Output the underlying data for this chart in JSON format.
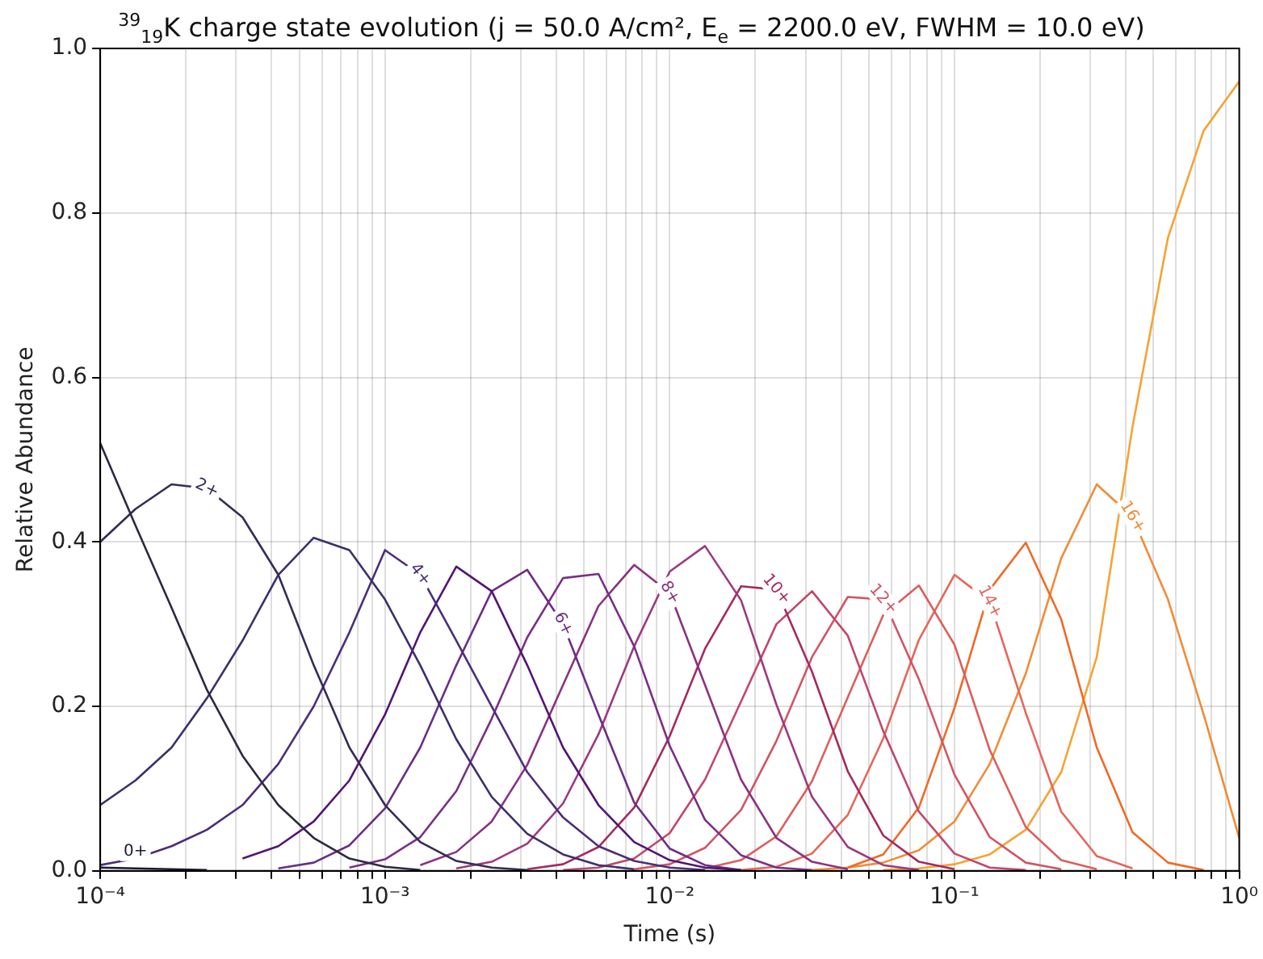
{
  "chart_data": {
    "type": "line",
    "title": "$^{39}$$_{19}$K charge state evolution (j = 50.0 A/cm², E$_{e}$ = 2200.0 eV, FWHM = 10.0 eV)",
    "xlabel": "Time (s)",
    "ylabel": "Relative Abundance",
    "log": "x",
    "grid": true,
    "legend": false,
    "marker": "none",
    "xlim": [
      0.0001,
      1
    ],
    "ylim": [
      0,
      1
    ],
    "xticks": [
      {
        "value": 0.0001,
        "label": "10⁻⁴"
      },
      {
        "value": 0.0002,
        "label": null
      },
      {
        "value": 0.0003,
        "label": null
      },
      {
        "value": 0.0004,
        "label": null
      },
      {
        "value": 0.0005,
        "label": null
      },
      {
        "value": 0.0006,
        "label": null
      },
      {
        "value": 0.0007,
        "label": null
      },
      {
        "value": 0.0008,
        "label": null
      },
      {
        "value": 0.0009,
        "label": null
      },
      {
        "value": 0.001,
        "label": "10⁻³"
      },
      {
        "value": 0.002,
        "label": null
      },
      {
        "value": 0.003,
        "label": null
      },
      {
        "value": 0.004,
        "label": null
      },
      {
        "value": 0.005,
        "label": null
      },
      {
        "value": 0.006,
        "label": null
      },
      {
        "value": 0.007,
        "label": null
      },
      {
        "value": 0.008,
        "label": null
      },
      {
        "value": 0.009,
        "label": null
      },
      {
        "value": 0.01,
        "label": "10⁻²"
      },
      {
        "value": 0.02,
        "label": null
      },
      {
        "value": 0.03,
        "label": null
      },
      {
        "value": 0.04,
        "label": null
      },
      {
        "value": 0.05,
        "label": null
      },
      {
        "value": 0.06,
        "label": null
      },
      {
        "value": 0.07,
        "label": null
      },
      {
        "value": 0.08,
        "label": null
      },
      {
        "value": 0.09,
        "label": null
      },
      {
        "value": 0.1,
        "label": "10⁻¹"
      },
      {
        "value": 0.2,
        "label": null
      },
      {
        "value": 0.3,
        "label": null
      },
      {
        "value": 0.4,
        "label": null
      },
      {
        "value": 0.5,
        "label": null
      },
      {
        "value": 0.6,
        "label": null
      },
      {
        "value": 0.7,
        "label": null
      },
      {
        "value": 0.8,
        "label": null
      },
      {
        "value": 0.9,
        "label": null
      },
      {
        "value": 1,
        "label": "10⁰"
      }
    ],
    "yticks": [
      {
        "value": 0,
        "label": "0.0"
      },
      0.2,
      0.4,
      0.6,
      0.8,
      {
        "value": 1,
        "label": "1.0"
      }
    ],
    "x": [
      0.0001,
      0.000133,
      0.000178,
      0.000237,
      0.000316,
      0.000422,
      0.000562,
      0.00075,
      0.001,
      0.00133,
      0.00178,
      0.00237,
      0.00316,
      0.00422,
      0.00562,
      0.0075,
      0.01,
      0.0133,
      0.0178,
      0.0237,
      0.0316,
      0.0422,
      0.0562,
      0.075,
      0.1,
      0.133,
      0.178,
      0.237,
      0.316,
      0.422,
      0.562,
      0.75,
      1
    ],
    "series": [
      {
        "name": "0+",
        "color": "#1c1830",
        "values": [
          0.004,
          0.003,
          0.002,
          0.001,
          null,
          null,
          null,
          null,
          null,
          null,
          null,
          null,
          null,
          null,
          null,
          null,
          null,
          null,
          null,
          null,
          null,
          null,
          null,
          null,
          null,
          null,
          null,
          null,
          null,
          null,
          null,
          null,
          null
        ]
      },
      {
        "color": "#2b2a40",
        "values": [
          0.52,
          0.42,
          0.32,
          0.22,
          0.14,
          0.08,
          0.04,
          0.015,
          0.005,
          0.001,
          null,
          null,
          null,
          null,
          null,
          null,
          null,
          null,
          null,
          null,
          null,
          null,
          null,
          null,
          null,
          null,
          null,
          null,
          null,
          null,
          null,
          null,
          null
        ]
      },
      {
        "name": "2+",
        "color": "#352c55",
        "values": [
          0.4,
          0.44,
          0.47,
          0.465,
          0.43,
          0.36,
          0.25,
          0.15,
          0.08,
          0.035,
          0.012,
          0.004,
          0.001,
          null,
          null,
          null,
          null,
          null,
          null,
          null,
          null,
          null,
          null,
          null,
          null,
          null,
          null,
          null,
          null,
          null,
          null,
          null,
          null
        ]
      },
      {
        "color": "#3e2f6b",
        "values": [
          0.08,
          0.11,
          0.15,
          0.21,
          0.28,
          0.36,
          0.405,
          0.39,
          0.33,
          0.25,
          0.16,
          0.09,
          0.045,
          0.02,
          0.007,
          0.002,
          null,
          null,
          null,
          null,
          null,
          null,
          null,
          null,
          null,
          null,
          null,
          null,
          null,
          null,
          null,
          null,
          null
        ]
      },
      {
        "name": "4+",
        "color": "#4b2e7a",
        "values": [
          0.007,
          0.015,
          0.03,
          0.05,
          0.08,
          0.13,
          0.2,
          0.29,
          0.39,
          0.36,
          0.28,
          0.2,
          0.12,
          0.065,
          0.03,
          0.012,
          0.004,
          0.001,
          null,
          null,
          null,
          null,
          null,
          null,
          null,
          null,
          null,
          null,
          null,
          null,
          null,
          null,
          null
        ]
      },
      {
        "color": "#521673",
        "values": [
          null,
          null,
          null,
          null,
          0.015,
          0.03,
          0.06,
          0.11,
          0.19,
          0.29,
          0.37,
          0.34,
          0.25,
          0.15,
          0.08,
          0.035,
          0.013,
          0.004,
          0.001,
          null,
          null,
          null,
          null,
          null,
          null,
          null,
          null,
          null,
          null,
          null,
          null,
          null,
          null
        ]
      },
      {
        "name": "6+",
        "color": "#6b2e86",
        "values": [
          null,
          null,
          null,
          null,
          null,
          0.003,
          0.01,
          0.031,
          0.076,
          0.15,
          0.25,
          0.34,
          0.366,
          0.3,
          0.19,
          0.083,
          0.027,
          0.007,
          0.001,
          null,
          null,
          null,
          null,
          null,
          null,
          null,
          null,
          null,
          null,
          null,
          null,
          null,
          null
        ]
      },
      {
        "color": "#7a2f85",
        "values": [
          null,
          null,
          null,
          null,
          null,
          null,
          null,
          0.004,
          0.014,
          0.041,
          0.097,
          0.185,
          0.284,
          0.356,
          0.361,
          0.273,
          0.152,
          0.062,
          0.019,
          0.004,
          0.001,
          null,
          null,
          null,
          null,
          null,
          null,
          null,
          null,
          null,
          null,
          null,
          null
        ]
      },
      {
        "name": "8+",
        "color": "#8a3281",
        "values": [
          null,
          null,
          null,
          null,
          null,
          null,
          null,
          null,
          null,
          0.007,
          0.023,
          0.06,
          0.129,
          0.226,
          0.322,
          0.372,
          0.338,
          0.226,
          0.111,
          0.04,
          0.011,
          0.002,
          null,
          null,
          null,
          null,
          null,
          null,
          null,
          null,
          null,
          null,
          null
        ]
      },
      {
        "color": "#9c3a7e",
        "values": [
          null,
          null,
          null,
          null,
          null,
          null,
          null,
          null,
          null,
          null,
          0.003,
          0.011,
          0.033,
          0.082,
          0.166,
          0.273,
          0.364,
          0.395,
          0.329,
          0.202,
          0.09,
          0.029,
          0.007,
          0.001,
          null,
          null,
          null,
          null,
          null,
          null,
          null,
          null,
          null
        ]
      },
      {
        "name": "10+",
        "color": "#a42b5e",
        "values": [
          null,
          null,
          null,
          null,
          null,
          null,
          null,
          null,
          null,
          null,
          null,
          null,
          0.002,
          0.008,
          0.029,
          0.077,
          0.164,
          0.27,
          0.346,
          0.342,
          0.242,
          0.121,
          0.043,
          0.011,
          0.002,
          null,
          null,
          null,
          null,
          null,
          null,
          null,
          null
        ]
      },
      {
        "color": "#c2476b",
        "values": [
          null,
          null,
          null,
          null,
          null,
          null,
          null,
          null,
          null,
          null,
          null,
          null,
          null,
          0.001,
          0.004,
          0.015,
          0.046,
          0.111,
          0.206,
          0.3,
          0.34,
          0.286,
          0.17,
          0.072,
          0.021,
          0.004,
          0.001,
          null,
          null,
          null,
          null,
          null,
          null
        ]
      },
      {
        "name": "12+",
        "color": "#d05565",
        "values": [
          null,
          null,
          null,
          null,
          null,
          null,
          null,
          null,
          null,
          null,
          null,
          null,
          null,
          null,
          null,
          0.002,
          0.008,
          0.028,
          0.074,
          0.158,
          0.26,
          0.333,
          0.33,
          0.233,
          0.117,
          0.041,
          0.01,
          0.002,
          null,
          null,
          null,
          null,
          null
        ]
      },
      {
        "color": "#dc5e5c",
        "values": [
          null,
          null,
          null,
          null,
          null,
          null,
          null,
          null,
          null,
          null,
          null,
          null,
          null,
          null,
          null,
          null,
          null,
          0.003,
          0.013,
          0.042,
          0.109,
          0.211,
          0.311,
          0.347,
          0.275,
          0.147,
          0.053,
          0.013,
          0.002,
          null,
          null,
          null,
          null
        ]
      },
      {
        "name": "14+",
        "color": "#e4675a",
        "values": [
          null,
          null,
          null,
          null,
          null,
          null,
          null,
          null,
          null,
          null,
          null,
          null,
          null,
          null,
          null,
          null,
          null,
          null,
          0.001,
          0.005,
          0.021,
          0.068,
          0.161,
          0.281,
          0.36,
          0.327,
          0.192,
          0.072,
          0.018,
          0.003,
          null,
          null,
          null
        ]
      },
      {
        "color": "#ef6a24",
        "values": [
          null,
          null,
          null,
          null,
          null,
          null,
          null,
          null,
          null,
          null,
          null,
          null,
          null,
          null,
          null,
          null,
          null,
          null,
          null,
          null,
          null,
          0.004,
          0.02,
          0.077,
          0.198,
          0.342,
          0.399,
          0.306,
          0.15,
          0.047,
          0.01,
          0.001,
          null
        ]
      },
      {
        "name": "16+",
        "color": "#f28b37",
        "values": [
          null,
          null,
          null,
          null,
          null,
          null,
          null,
          null,
          null,
          null,
          null,
          null,
          null,
          null,
          null,
          null,
          null,
          null,
          null,
          null,
          0.001,
          0.004,
          0.01,
          0.025,
          0.06,
          0.13,
          0.24,
          0.38,
          0.47,
          0.43,
          0.33,
          0.19,
          0.04
        ]
      },
      {
        "color": "#f7a233",
        "values": [
          null,
          null,
          null,
          null,
          null,
          null,
          null,
          null,
          null,
          null,
          null,
          null,
          null,
          null,
          null,
          null,
          null,
          null,
          null,
          null,
          null,
          null,
          0.001,
          0.003,
          0.008,
          0.02,
          0.05,
          0.12,
          0.26,
          0.54,
          0.77,
          0.9,
          0.96
        ]
      }
    ]
  }
}
